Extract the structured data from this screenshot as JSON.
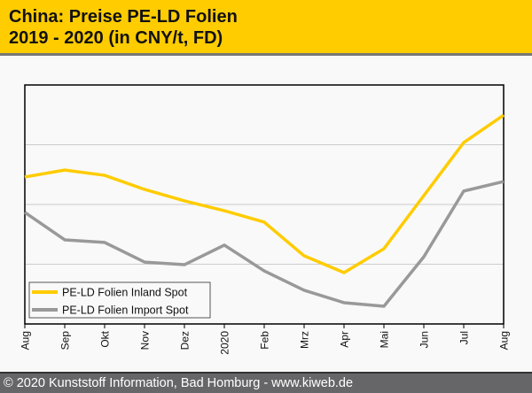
{
  "header": {
    "title_line1": "China: Preise PE-LD Folien",
    "title_line2": "2019 - 2020 (in CNY/t, FD)"
  },
  "footer": {
    "text": "© 2020 Kunststoff Information, Bad Homburg - www.kiweb.de"
  },
  "colors": {
    "header_bg": "#ffcc00",
    "series_inland": "#ffcc00",
    "series_import": "#999999",
    "footer_bg": "#666668"
  },
  "chart_data": {
    "type": "line",
    "title": "China: Preise PE-LD Folien 2019 - 2020 (in CNY/t, FD)",
    "xlabel": "",
    "ylabel": "",
    "categories": [
      "Aug",
      "Sep",
      "Okt",
      "Nov",
      "Dez",
      "2020",
      "Feb",
      "Mrz",
      "Apr",
      "Mai",
      "Jun",
      "Jul",
      "Aug"
    ],
    "ylim": [
      0,
      100
    ],
    "y_gridlines": [
      25,
      50,
      75
    ],
    "grid": true,
    "y_tick_labels_visible": false,
    "legend_position": "bottom-left",
    "series": [
      {
        "name": "PE-LD Folien Inland Spot",
        "color": "#ffcc00",
        "values": [
          61.5,
          64.4,
          62.2,
          56.3,
          51.5,
          47.4,
          42.6,
          28.5,
          21.5,
          31.5,
          53.7,
          75.9,
          87.4
        ]
      },
      {
        "name": "PE-LD Folien Import Spot",
        "color": "#999999",
        "values": [
          46.7,
          35.2,
          34.1,
          25.9,
          24.8,
          33.0,
          22.2,
          14.1,
          8.9,
          7.4,
          28.1,
          55.6,
          59.6
        ]
      }
    ]
  }
}
